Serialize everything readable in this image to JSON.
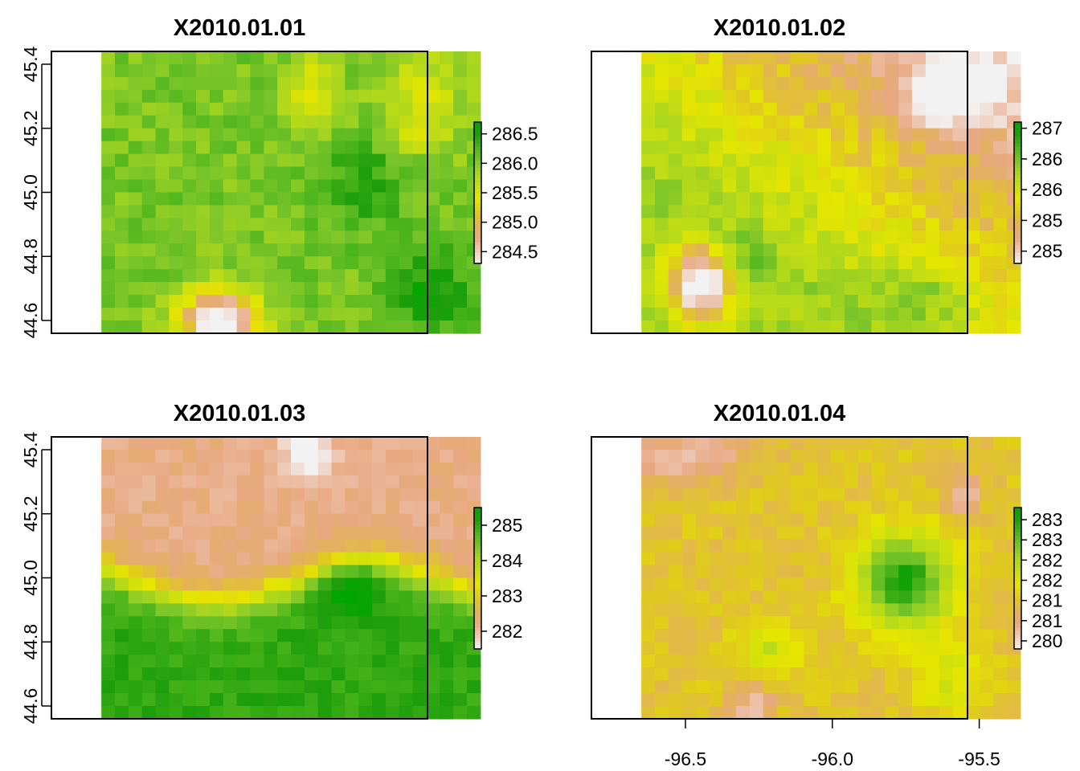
{
  "chart_data": [
    {
      "type": "heatmap",
      "title": "X2010.01.01",
      "x_range": [
        -96.82,
        -95.54
      ],
      "y_range": [
        44.56,
        45.44
      ],
      "xlim": [
        -96.82,
        -95.54
      ],
      "ylim": [
        44.56,
        45.44
      ],
      "x_ticks": [],
      "y_ticks": [
        "44.6",
        "44.8",
        "45.0",
        "45.2",
        "45.4"
      ],
      "legend": {
        "labels": [
          "284.5",
          "285.0",
          "285.5",
          "286.0",
          "286.5"
        ],
        "values": [
          284.5,
          285.0,
          285.5,
          286.0,
          286.5
        ],
        "min": 284.3,
        "max": 286.7
      },
      "baseline": 286.05,
      "features": [
        {
          "kind": "warm_spot",
          "x": -96.25,
          "y": 44.6,
          "amp": 2.1,
          "sx": 0.09,
          "sy": 0.07
        },
        {
          "kind": "warm_spot",
          "x": -95.93,
          "y": 45.32,
          "amp": 0.6,
          "sx": 0.06,
          "sy": 0.1
        },
        {
          "kind": "warm_spot",
          "x": -95.55,
          "y": 45.3,
          "amp": 0.5,
          "sx": 0.1,
          "sy": 0.1
        },
        {
          "kind": "warm_spot",
          "x": -95.6,
          "y": 45.18,
          "amp": 0.3,
          "sx": 0.08,
          "sy": 0.05
        },
        {
          "kind": "cool_spot",
          "x": -95.75,
          "y": 45.02,
          "amp": 0.4,
          "sx": 0.1,
          "sy": 0.1
        },
        {
          "kind": "cool_spot",
          "x": -95.52,
          "y": 44.7,
          "amp": 0.5,
          "sx": 0.1,
          "sy": 0.1
        }
      ]
    },
    {
      "type": "heatmap",
      "title": "X2010.01.02",
      "x_range": [
        -96.82,
        -95.54
      ],
      "y_range": [
        44.56,
        45.44
      ],
      "xlim": [
        -96.82,
        -95.54
      ],
      "ylim": [
        44.56,
        45.44
      ],
      "x_ticks": [],
      "y_ticks": [],
      "legend": {
        "labels": [
          "287",
          "286",
          "286",
          "285",
          "285"
        ],
        "values": [
          287.0,
          286.5,
          286.0,
          285.5,
          285.0
        ],
        "min": 284.8,
        "max": 287.1
      },
      "baseline": 286.3,
      "features": [
        {
          "kind": "warm_gradient",
          "from": "south-west",
          "to": "north-east",
          "amp": 1.3
        },
        {
          "kind": "warm_spot",
          "x": -96.45,
          "y": 44.72,
          "amp": 1.8,
          "sx": 0.08,
          "sy": 0.08
        },
        {
          "kind": "warm_spot",
          "x": -95.6,
          "y": 45.31,
          "amp": 0.8,
          "sx": 0.1,
          "sy": 0.08
        },
        {
          "kind": "cool_spot",
          "x": -96.3,
          "y": 44.78,
          "amp": 0.4,
          "sx": 0.06,
          "sy": 0.06
        },
        {
          "kind": "cool_spot",
          "x": -95.7,
          "y": 44.68,
          "amp": 0.4,
          "sx": 0.12,
          "sy": 0.06
        }
      ]
    },
    {
      "type": "heatmap",
      "title": "X2010.01.03",
      "x_range": [
        -96.82,
        -95.54
      ],
      "y_range": [
        44.56,
        45.44
      ],
      "xlim": [
        -96.82,
        -95.54
      ],
      "ylim": [
        44.56,
        45.44
      ],
      "x_ticks": [],
      "y_ticks": [
        "44.6",
        "44.8",
        "45.0",
        "45.2",
        "45.4"
      ],
      "legend": {
        "labels": [
          "282",
          "283",
          "284",
          "285"
        ],
        "values": [
          282,
          283,
          284,
          285
        ],
        "min": 281.5,
        "max": 285.5
      },
      "baseline": 282.6,
      "features": [
        {
          "kind": "cool_band",
          "south_value": 285.0,
          "north_value": 282.2,
          "edge_y": 44.98
        },
        {
          "kind": "warm_spot",
          "x": -95.95,
          "y": 45.38,
          "amp": 0.9,
          "sx": 0.06,
          "sy": 0.06
        },
        {
          "kind": "cool_spot",
          "x": -95.8,
          "y": 44.98,
          "amp": 1.0,
          "sx": 0.07,
          "sy": 0.06
        }
      ]
    },
    {
      "type": "heatmap",
      "title": "X2010.01.04",
      "x_range": [
        -96.82,
        -95.54
      ],
      "y_range": [
        44.56,
        45.44
      ],
      "xlim": [
        -96.82,
        -95.54
      ],
      "ylim": [
        44.56,
        45.44
      ],
      "x_ticks": [
        "-96.5",
        "-96.0",
        "-95.5"
      ],
      "y_ticks": [],
      "legend": {
        "labels": [
          "283",
          "283",
          "282",
          "282",
          "281",
          "281",
          "280"
        ],
        "values": [
          283.0,
          282.5,
          282.0,
          281.5,
          281.0,
          280.5,
          280.0
        ],
        "min": 279.8,
        "max": 283.3
      },
      "baseline": 281.0,
      "features": [
        {
          "kind": "cool_spot",
          "x": -95.75,
          "y": 44.99,
          "amp": 2.0,
          "sx": 0.11,
          "sy": 0.1
        },
        {
          "kind": "cool_spot",
          "x": -96.22,
          "y": 44.78,
          "amp": 0.7,
          "sx": 0.07,
          "sy": 0.06
        },
        {
          "kind": "cool_spot",
          "x": -95.6,
          "y": 44.68,
          "amp": 0.6,
          "sx": 0.08,
          "sy": 0.08
        },
        {
          "kind": "warm_spot",
          "x": -96.5,
          "y": 45.38,
          "amp": 0.8,
          "sx": 0.15,
          "sy": 0.06
        },
        {
          "kind": "warm_spot",
          "x": -95.55,
          "y": 45.25,
          "amp": 1.0,
          "sx": 0.04,
          "sy": 0.04
        },
        {
          "kind": "warm_spot",
          "x": -96.27,
          "y": 44.6,
          "amp": 0.9,
          "sx": 0.05,
          "sy": 0.05
        }
      ]
    }
  ],
  "colors": {
    "ramp": [
      "#f2f2f2",
      "#eec7b4",
      "#e8a982",
      "#e3b35a",
      "#e0c91f",
      "#e6e600",
      "#c8de12",
      "#a9d61f",
      "#7ac52a",
      "#4cb51c",
      "#1e9e0b",
      "#00a600"
    ],
    "axis": "#000000",
    "background": "#ffffff"
  }
}
